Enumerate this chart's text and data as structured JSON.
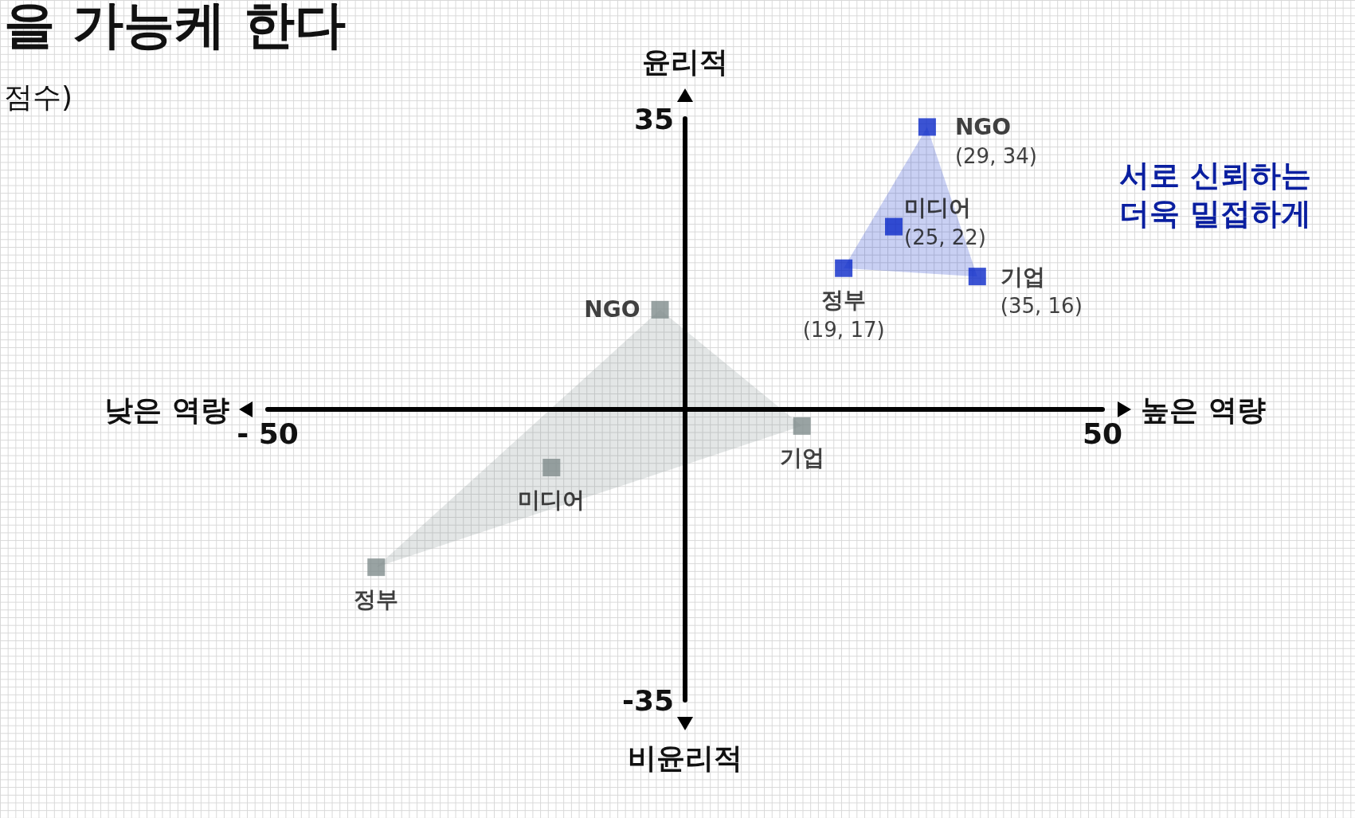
{
  "chart_data": {
    "type": "scatter",
    "title": "을 가능케 한다",
    "subtitle": "점수)",
    "xlabel": "높은 역량",
    "ylabel": "윤리적",
    "xlim": [
      -50,
      50
    ],
    "ylim": [
      -35,
      35
    ],
    "xticks": [
      {
        "value": -50,
        "label": "- 50"
      },
      50
    ],
    "yticks": [
      -35,
      35
    ],
    "marker": "square",
    "annotations": [
      "낮은 역량",
      "비윤리적",
      "서로 신뢰하는",
      "더욱 밀접하게",
      {
        "text": "NGO",
        "x": 29,
        "y": 34
      },
      {
        "text": "미디어",
        "x": 25,
        "y": 22
      },
      {
        "text": "기업",
        "x": 35,
        "y": 16
      },
      {
        "text": "정부",
        "x": 19,
        "y": 17
      },
      {
        "text": "NGO",
        "x": -3,
        "y": 12
      },
      {
        "text": "미디어",
        "x": -16,
        "y": -7
      },
      {
        "text": "기업",
        "x": 14,
        "y": -2
      },
      {
        "text": "정부",
        "x": -37,
        "y": -19
      }
    ],
    "series": [
      {
        "color": "#0a28c8",
        "x": [
          29,
          25,
          35,
          19
        ],
        "values": [
          34,
          22,
          16,
          17
        ],
        "value_labels": [
          "(29, 34)",
          "(25, 22)",
          "(35, 16)",
          "(19, 17)"
        ]
      },
      {
        "color": "#7f8c8c",
        "x": [
          -3,
          -16,
          14,
          -37
        ],
        "values": [
          12,
          -7,
          -2,
          -19
        ]
      }
    ]
  }
}
